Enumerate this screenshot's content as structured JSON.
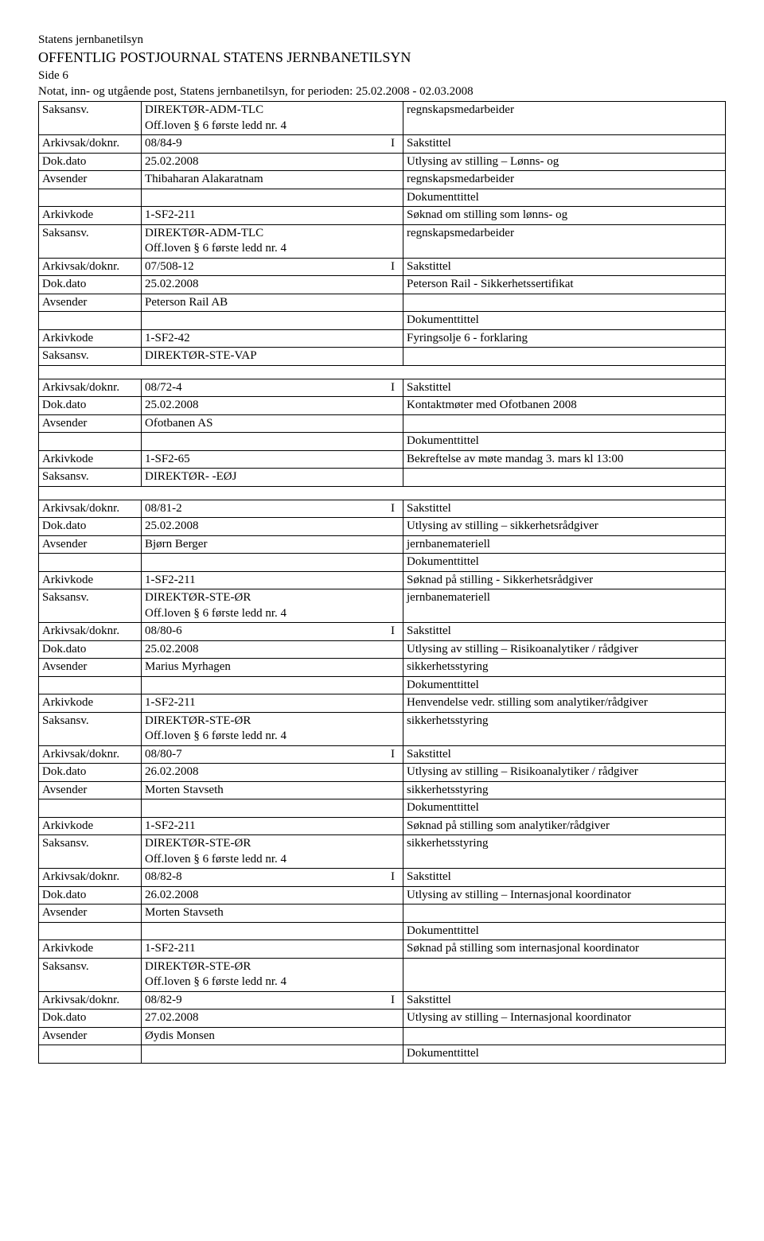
{
  "header": {
    "agency": "Statens jernbanetilsyn",
    "title": "OFFENTLIG POSTJOURNAL STATENS JERNBANETILSYN",
    "page": "Side 6",
    "subtitle": "Notat, inn- og utgående post, Statens jernbanetilsyn, for perioden: 25.02.2008 - 02.03.2008"
  },
  "labels": {
    "saksansv": "Saksansv.",
    "arkivsak": "Arkivsak/doknr.",
    "dokdato": "Dok.dato",
    "avsender": "Avsender",
    "arkivkode": "Arkivkode",
    "sakstittel": "Sakstittel",
    "dokumenttittel": "Dokumenttittel"
  },
  "entries": [
    {
      "topSaksansv": "DIREKTØR-ADM-TLC",
      "topOffloven": "Off.loven § 6 første ledd nr. 4",
      "topRight": "regnskapsmedarbeider",
      "arkivsak": "08/84-9",
      "io": "I",
      "dokdato": "25.02.2008",
      "avsender": "Thibaharan Alakaratnam",
      "arkivkode": "1-SF2-211",
      "saksansv": "DIREKTØR-ADM-TLC",
      "offloven": "Off.loven § 6 første ledd nr. 4",
      "sakstittel1": "Utlysing av stilling – Lønns- og",
      "sakstittel2": "regnskapsmedarbeider",
      "doktittel1": "Søknad om stilling som lønns- og",
      "doktittel2": "regnskapsmedarbeider",
      "spacer": false
    },
    {
      "arkivsak": "07/508-12",
      "io": "I",
      "dokdato": "25.02.2008",
      "avsender": "Peterson Rail AB",
      "arkivkode": "1-SF2-42",
      "saksansv": "DIREKTØR-STE-VAP",
      "offloven": "",
      "sakstittel1": "Peterson Rail - Sikkerhetssertifikat",
      "sakstittel2": "",
      "doktittel1": "Fyringsolje 6 - forklaring",
      "doktittel2": "",
      "spacer": true
    },
    {
      "arkivsak": "08/72-4",
      "io": "I",
      "dokdato": "25.02.2008",
      "avsender": "Ofotbanen AS",
      "arkivkode": "1-SF2-65",
      "saksansv": "DIREKTØR- -EØJ",
      "offloven": "",
      "sakstittel1": "Kontaktmøter med Ofotbanen 2008",
      "sakstittel2": "",
      "doktittel1": "Bekreftelse av møte mandag 3. mars kl 13:00",
      "doktittel2": "",
      "spacer": true
    },
    {
      "arkivsak": "08/81-2",
      "io": "I",
      "dokdato": "25.02.2008",
      "avsender": "Bjørn Berger",
      "arkivkode": "1-SF2-211",
      "saksansv": "DIREKTØR-STE-ØR",
      "offloven": "Off.loven § 6 første ledd nr. 4",
      "sakstittel1": "Utlysing av stilling – sikkerhetsrådgiver",
      "sakstittel2": "jernbanemateriell",
      "doktittel1": "Søknad på stilling - Sikkerhetsrådgiver",
      "doktittel2": "jernbanemateriell",
      "spacer": false
    },
    {
      "arkivsak": "08/80-6",
      "io": "I",
      "dokdato": "25.02.2008",
      "avsender": "Marius Myrhagen",
      "arkivkode": "1-SF2-211",
      "saksansv": "DIREKTØR-STE-ØR",
      "offloven": "Off.loven § 6 første ledd nr. 4",
      "sakstittel1": "Utlysing av stilling – Risikoanalytiker / rådgiver",
      "sakstittel2": "sikkerhetsstyring",
      "doktittel1": "Henvendelse vedr. stilling som analytiker/rådgiver",
      "doktittel2": "sikkerhetsstyring",
      "spacer": false
    },
    {
      "arkivsak": "08/80-7",
      "io": "I",
      "dokdato": "26.02.2008",
      "avsender": "Morten Stavseth",
      "arkivkode": "1-SF2-211",
      "saksansv": "DIREKTØR-STE-ØR",
      "offloven": "Off.loven § 6 første ledd nr. 4",
      "sakstittel1": "Utlysing av stilling – Risikoanalytiker / rådgiver",
      "sakstittel2": "sikkerhetsstyring",
      "doktittel1": "Søknad på stilling som analytiker/rådgiver",
      "doktittel2": "sikkerhetsstyring",
      "spacer": false
    },
    {
      "arkivsak": "08/82-8",
      "io": "I",
      "dokdato": "26.02.2008",
      "avsender": "Morten Stavseth",
      "arkivkode": "1-SF2-211",
      "saksansv": "DIREKTØR-STE-ØR",
      "offloven": "Off.loven § 6 første ledd nr. 4",
      "sakstittel1": "Utlysing av stilling – Internasjonal koordinator",
      "sakstittel2": "",
      "doktittel1": "Søknad på stilling som internasjonal koordinator",
      "doktittel2": "",
      "spacer": false
    },
    {
      "arkivsak": "08/82-9",
      "io": "I",
      "dokdato": "27.02.2008",
      "avsender": "Øydis Monsen",
      "arkivkode": "",
      "saksansv": "",
      "offloven": "",
      "sakstittel1": "Utlysing av stilling – Internasjonal koordinator",
      "sakstittel2": "",
      "doktittel1": "",
      "doktittel2": "",
      "spacer": false,
      "partial": true
    }
  ]
}
